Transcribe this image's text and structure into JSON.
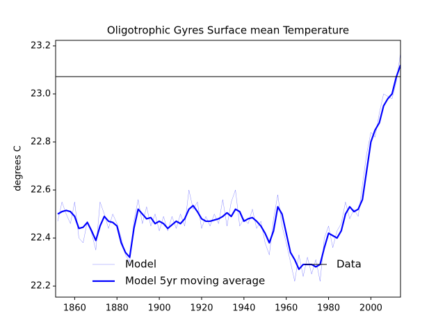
{
  "chart_data": {
    "type": "line",
    "title": "Oligotrophic Gyres Surface mean Temperature",
    "y_label": "degrees C",
    "x": [
      1852,
      1854,
      1856,
      1858,
      1860,
      1862,
      1864,
      1866,
      1868,
      1870,
      1872,
      1874,
      1876,
      1878,
      1880,
      1882,
      1884,
      1886,
      1888,
      1890,
      1892,
      1894,
      1896,
      1898,
      1900,
      1902,
      1904,
      1906,
      1908,
      1910,
      1912,
      1914,
      1916,
      1918,
      1920,
      1922,
      1924,
      1926,
      1928,
      1930,
      1932,
      1934,
      1936,
      1938,
      1940,
      1942,
      1944,
      1946,
      1948,
      1950,
      1952,
      1954,
      1956,
      1958,
      1960,
      1962,
      1964,
      1966,
      1968,
      1970,
      1972,
      1974,
      1976,
      1978,
      1980,
      1982,
      1984,
      1986,
      1988,
      1990,
      1992,
      1994,
      1996,
      1998,
      2000,
      2002,
      2004,
      2006,
      2008,
      2010,
      2012,
      2014
    ],
    "series": [
      {
        "name": "Model",
        "color": "#0000ff",
        "width": 0.4,
        "opacity": 0.6,
        "values": [
          22.47,
          22.55,
          22.5,
          22.46,
          22.55,
          22.4,
          22.38,
          22.47,
          22.42,
          22.35,
          22.55,
          22.5,
          22.44,
          22.5,
          22.46,
          22.4,
          22.33,
          22.3,
          22.47,
          22.56,
          22.46,
          22.53,
          22.45,
          22.5,
          22.43,
          22.49,
          22.43,
          22.49,
          22.44,
          22.5,
          22.45,
          22.6,
          22.52,
          22.55,
          22.44,
          22.49,
          22.45,
          22.5,
          22.46,
          22.56,
          22.45,
          22.55,
          22.6,
          22.45,
          22.48,
          22.46,
          22.52,
          22.44,
          22.47,
          22.38,
          22.33,
          22.48,
          22.58,
          22.45,
          22.38,
          22.3,
          22.22,
          22.33,
          22.24,
          22.32,
          22.25,
          22.31,
          22.22,
          22.4,
          22.45,
          22.36,
          22.43,
          22.46,
          22.55,
          22.48,
          22.52,
          22.49,
          22.62,
          22.75,
          22.84,
          22.82,
          22.92,
          23.0,
          22.99,
          22.98,
          23.05,
          23.17
        ]
      },
      {
        "name": "Model 5yr moving average",
        "color": "#0000ff",
        "width": 2.2,
        "opacity": 1,
        "values": [
          22.5,
          22.51,
          22.515,
          22.51,
          22.49,
          22.44,
          22.445,
          22.465,
          22.43,
          22.39,
          22.45,
          22.49,
          22.47,
          22.465,
          22.45,
          22.38,
          22.34,
          22.32,
          22.44,
          22.52,
          22.5,
          22.48,
          22.485,
          22.46,
          22.47,
          22.46,
          22.44,
          22.455,
          22.47,
          22.46,
          22.48,
          22.52,
          22.535,
          22.51,
          22.48,
          22.47,
          22.47,
          22.475,
          22.48,
          22.49,
          22.505,
          22.49,
          22.52,
          22.51,
          22.47,
          22.48,
          22.485,
          22.47,
          22.45,
          22.42,
          22.38,
          22.43,
          22.53,
          22.5,
          22.42,
          22.34,
          22.31,
          22.27,
          22.29,
          22.29,
          22.29,
          22.28,
          22.29,
          22.36,
          22.42,
          22.41,
          22.4,
          22.43,
          22.5,
          22.53,
          22.51,
          22.52,
          22.56,
          22.68,
          22.8,
          22.85,
          22.88,
          22.95,
          22.98,
          23.0,
          23.07,
          23.12
        ]
      }
    ],
    "reference_line": {
      "name": "Data",
      "value": 23.072,
      "color": "#000000"
    },
    "xlim": [
      1851,
      2014
    ],
    "ylim": [
      22.154,
      23.223
    ],
    "xticks": [
      1860,
      1880,
      1900,
      1920,
      1940,
      1960,
      1980,
      2000
    ],
    "yticks": [
      22.2,
      22.4,
      22.6,
      22.8,
      {
        "value": 23,
        "label": "23.0"
      },
      23.2
    ],
    "grid": false,
    "legend": "lower center"
  }
}
